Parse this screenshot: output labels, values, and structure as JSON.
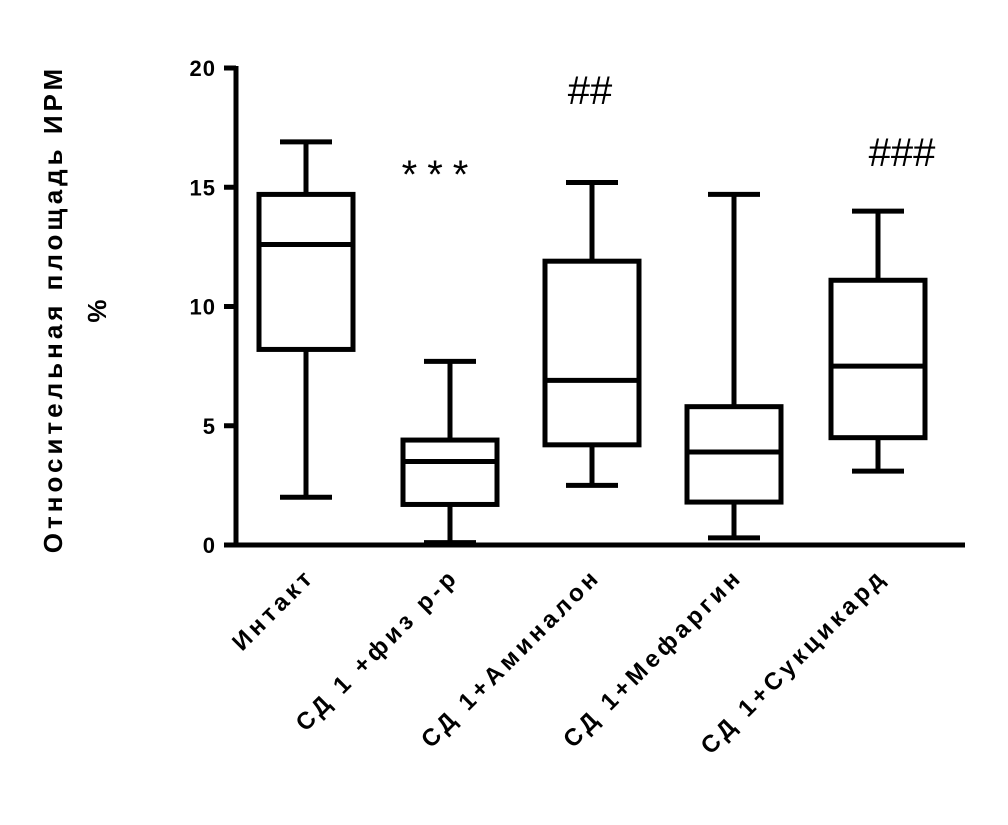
{
  "chart_data": {
    "type": "box",
    "ylabel_line1": "Относительная площадь ИРМ",
    "ylabel_line2": "%",
    "ylim": [
      0,
      20
    ],
    "yticks": [
      0,
      5,
      10,
      15,
      20
    ],
    "categories": [
      "Интакт",
      "СД 1 +физ р-р",
      "СД 1+Аминалон",
      "СД 1+Мефаргин",
      "СД 1+Сукцикард"
    ],
    "boxes": [
      {
        "min": 2.0,
        "q1": 8.2,
        "median": 12.6,
        "q3": 14.7,
        "max": 16.9
      },
      {
        "min": 0.1,
        "q1": 1.7,
        "median": 3.5,
        "q3": 4.4,
        "max": 7.7
      },
      {
        "min": 2.5,
        "q1": 4.2,
        "median": 6.9,
        "q3": 11.9,
        "max": 15.2
      },
      {
        "min": 0.3,
        "q1": 1.8,
        "median": 3.9,
        "q3": 5.8,
        "max": 14.7
      },
      {
        "min": 3.1,
        "q1": 4.5,
        "median": 7.5,
        "q3": 11.1,
        "max": 14.0
      }
    ],
    "annotations": [
      "",
      "***",
      "##",
      "",
      "###"
    ]
  }
}
